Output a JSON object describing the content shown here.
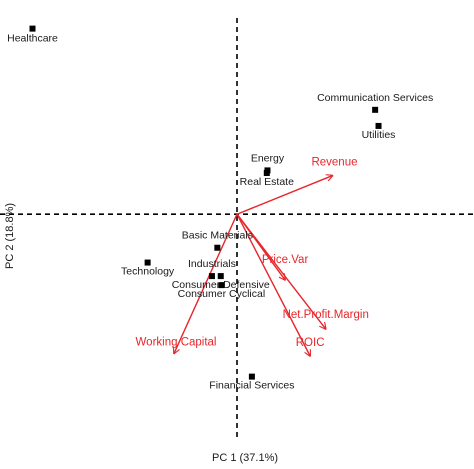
{
  "chart_data": {
    "type": "scatter",
    "subtype": "pca-biplot",
    "title": "",
    "xlabel": "PC 1 (37.1%)",
    "ylabel": "PC 2 (18.8%)",
    "xlim": [
      -3.5,
      3.5
    ],
    "ylim": [
      -3.55,
      3.2
    ],
    "grid": false,
    "reference_lines": {
      "x": 0,
      "y": 0,
      "style": "dashed"
    },
    "point_color": "#000000",
    "arrow_color": "#e8262b",
    "points": [
      {
        "name": "Healthcare",
        "x": -3.02,
        "y": 2.88
      },
      {
        "name": "Communication Services",
        "x": 2.04,
        "y": 1.62
      },
      {
        "name": "Utilities",
        "x": 2.09,
        "y": 1.37
      },
      {
        "name": "Energy",
        "x": 0.45,
        "y": 0.68
      },
      {
        "name": "Real Estate",
        "x": 0.44,
        "y": 0.64
      },
      {
        "name": "Basic Materials",
        "x": -0.29,
        "y": -0.52
      },
      {
        "name": "Technology",
        "x": -1.32,
        "y": -0.75
      },
      {
        "name": "Industrials",
        "x": -0.37,
        "y": -0.96
      },
      {
        "name": "Consumer Defensive",
        "x": -0.24,
        "y": -0.96
      },
      {
        "name": "Consumer Cyclical",
        "x": -0.23,
        "y": -1.1
      },
      {
        "name": "Financial Services",
        "x": 0.22,
        "y": -2.52
      }
    ],
    "loadings": [
      {
        "name": "Revenue",
        "x": 1.41,
        "y": 0.6
      },
      {
        "name": "Price.Var",
        "x": 0.71,
        "y": -1.02
      },
      {
        "name": "Net.Profit.Margin",
        "x": 1.31,
        "y": -1.78
      },
      {
        "name": "ROIC",
        "x": 1.08,
        "y": -2.2
      },
      {
        "name": "Working.Capital",
        "x": -0.93,
        "y": -2.16
      }
    ]
  }
}
